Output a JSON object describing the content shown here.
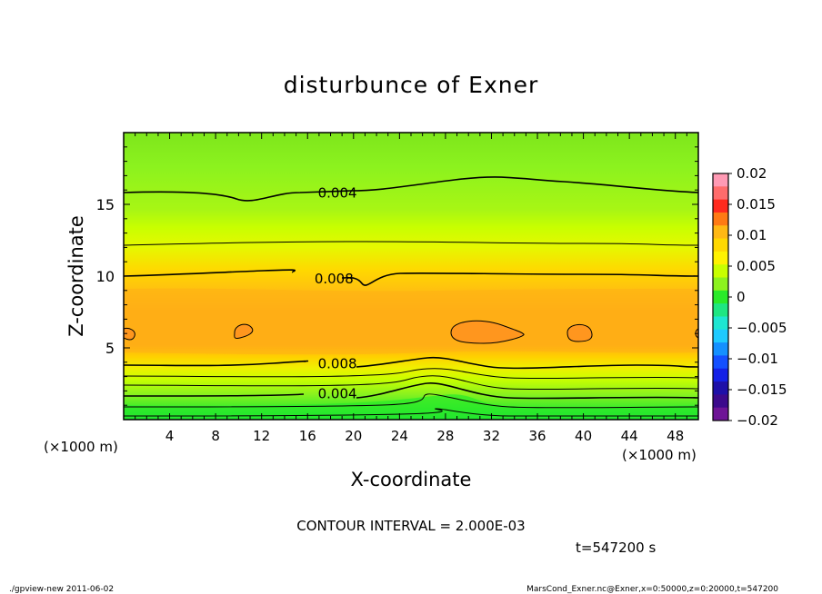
{
  "chart_data": {
    "type": "heatmap",
    "title": "disturbunce of Exner",
    "xlabel": "X-coordinate",
    "ylabel": "Z-coordinate",
    "x_unit_label": "(×1000 m)",
    "z_unit_label": "(×1000 m)",
    "xlim": [
      0,
      50
    ],
    "ylim": [
      0,
      20
    ],
    "x_ticks": [
      4,
      8,
      12,
      16,
      20,
      24,
      28,
      32,
      36,
      40,
      44,
      48
    ],
    "y_ticks": [
      5,
      10,
      15
    ],
    "colorbar": {
      "levels": [
        0.02,
        0.015,
        0.01,
        0.005,
        0,
        -0.005,
        -0.01,
        -0.015,
        -0.02
      ],
      "labels": [
        "0.02",
        "0.015",
        "0.01",
        "0.005",
        "0",
        "−0.005",
        "−0.01",
        "−0.015",
        "−0.02"
      ],
      "colors": [
        "#ff9ab4",
        "#ff6c6c",
        "#ff2a1e",
        "#ff7a14",
        "#ffb814",
        "#ffd800",
        "#fff200",
        "#c8ff00",
        "#8cf21e",
        "#2aea2a",
        "#1ee682",
        "#1ee6d2",
        "#1ecaff",
        "#1490ff",
        "#1450ff",
        "#1420e6",
        "#1e10a8",
        "#3c0a8c",
        "#6e1496"
      ],
      "range": [
        -0.02,
        0.02
      ]
    },
    "contour_labels": [
      {
        "text": "0.004",
        "x": 18.6,
        "z": 15.8
      },
      {
        "text": "0.008",
        "x": 18.3,
        "z": 9.8
      },
      {
        "text": "0.008",
        "x": 18.6,
        "z": 3.9
      },
      {
        "text": "0.004",
        "x": 18.6,
        "z": 1.8
      }
    ],
    "contour_interval_text": "CONTOUR INTERVAL = 2.000E-03",
    "time_text": "t=547200 s"
  },
  "footer": {
    "left": "./gpview-new  2011-06-02",
    "right": "MarsCond_Exner.nc@Exner,x=0:50000,z=0:20000,t=547200"
  }
}
